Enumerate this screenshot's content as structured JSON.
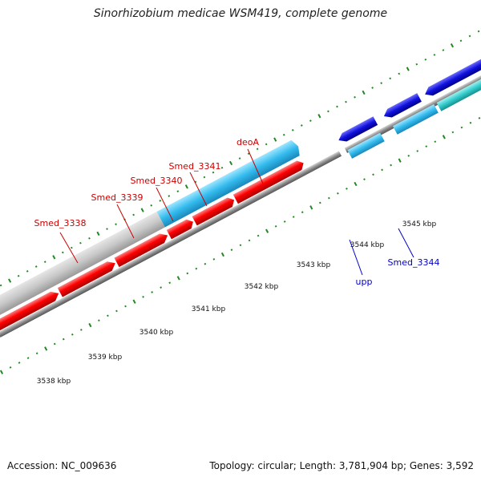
{
  "title": "Sinorhizobium medicae WSM419, complete genome",
  "genes": [
    {
      "label": "Smed_3338"
    },
    {
      "label": "Smed_3339"
    },
    {
      "label": "Smed_3340"
    },
    {
      "label": "Smed_3341"
    },
    {
      "label": "deoA"
    },
    {
      "label": "upp"
    },
    {
      "label": "Smed_3344"
    }
  ],
  "scale": [
    "3538 kbp",
    "3539 kbp",
    "3540 kbp",
    "3541 kbp",
    "3542 kbp",
    "3543 kbp",
    "3544 kbp",
    "3545 kbp"
  ],
  "footer": {
    "accession": "Accession: NC_009636",
    "topology": "Topology: circular; Length: 3,781,904 bp; Genes: 3,592"
  },
  "colors": {
    "forward_label": "#cc0000",
    "reverse_label": "#0000cc",
    "ticks": "#228822"
  }
}
